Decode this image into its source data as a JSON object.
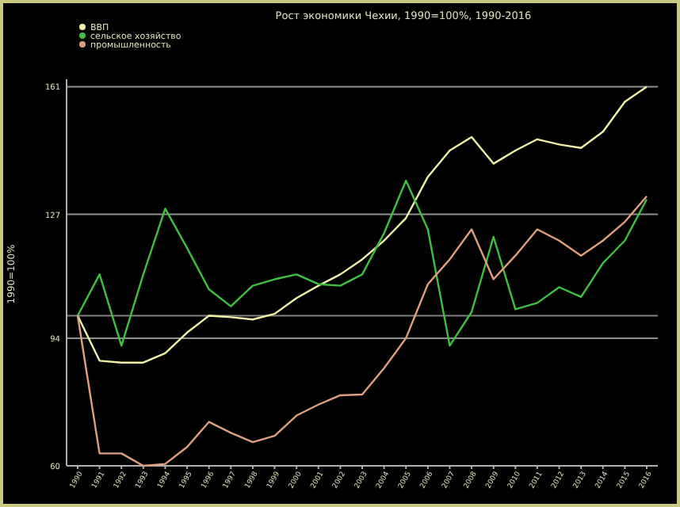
{
  "chart_data": {
    "type": "line",
    "title": "Рост экономики Чехии, 1990=100%, 1990-2016",
    "ylabel": "1990=100%",
    "categories": [
      "1990",
      "1991",
      "1992",
      "1993",
      "1994",
      "1995",
      "1996",
      "1997",
      "1998",
      "1999",
      "2000",
      "2001",
      "2002",
      "2003",
      "2004",
      "2005",
      "2006",
      "2007",
      "2008",
      "2009",
      "2010",
      "2011",
      "2012",
      "2013",
      "2014",
      "2015",
      "2016"
    ],
    "series": [
      {
        "name": "ВВП",
        "color": "#f0f0a8",
        "values": [
          100,
          88,
          87.5,
          87.5,
          90,
          95.5,
          100,
          99.6,
          99,
          100.5,
          104.7,
          108,
          111,
          115,
          120,
          126,
          137,
          144,
          147.6,
          140.5,
          144,
          147,
          145.6,
          144.7,
          149,
          157,
          161
        ]
      },
      {
        "name": "сельское хозяйство",
        "color": "#40c040",
        "values": [
          100,
          111,
          92,
          111,
          128.5,
          118,
          107,
          102.5,
          108,
          109.7,
          111,
          108.4,
          108,
          111,
          122,
          136,
          123,
          92,
          101,
          121,
          101.7,
          103.4,
          107.6,
          105,
          114,
          120,
          131
        ]
      },
      {
        "name": "промышленность",
        "color": "#e0a080",
        "values": [
          100,
          63.3,
          63.3,
          60,
          60.5,
          65,
          71.7,
          68.8,
          66.3,
          68,
          73.4,
          76.3,
          78.8,
          79,
          86,
          94,
          108.4,
          115,
          123,
          109.7,
          116,
          123,
          120,
          116,
          120,
          125,
          131.8
        ]
      }
    ],
    "ylim": [
      60,
      163
    ],
    "yticks": [
      60,
      94,
      127,
      161
    ],
    "grid": "y",
    "legend": "top left",
    "ref_lines": [
      {
        "axis": "y",
        "value": 100,
        "color": "#808080"
      }
    ]
  }
}
